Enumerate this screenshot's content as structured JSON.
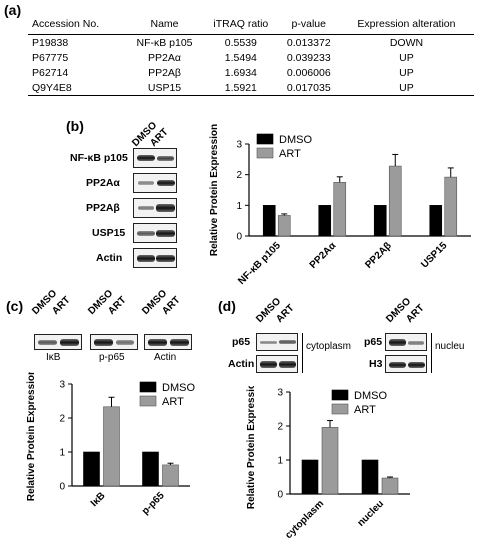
{
  "panel_labels": {
    "a": "(a)",
    "b": "(b)",
    "c": "(c)",
    "d": "(d)"
  },
  "table": {
    "headers": [
      "Accession No.",
      "Name",
      "iTRAQ ratio",
      "p-value",
      "Expression alteration"
    ],
    "rows": [
      [
        "P19838",
        "NF-κB p105",
        "0.5539",
        "0.013372",
        "DOWN"
      ],
      [
        "P67775",
        "PP2Aα",
        "1.5494",
        "0.039233",
        "UP"
      ],
      [
        "P62714",
        "PP2Aβ",
        "1.6934",
        "0.006006",
        "UP"
      ],
      [
        "Q9Y4E8",
        "USP15",
        "1.5921",
        "0.017035",
        "UP"
      ]
    ]
  },
  "blots": {
    "b": {
      "lanes": [
        "DMSO",
        "ART"
      ],
      "rows": [
        "NF-κB p105",
        "PP2Aα",
        "PP2Aβ",
        "USP15",
        "Actin"
      ]
    },
    "c": {
      "lanes": [
        "DMSO",
        "ART"
      ],
      "rows": [
        "IκB",
        "p-p65",
        "Actin"
      ]
    },
    "d": {
      "lanes": [
        "DMSO",
        "ART"
      ],
      "rows_cyto": [
        "p65",
        "Actin"
      ],
      "rows_nuc": [
        "p65",
        "H3"
      ],
      "cyto_label": "cytoplasm",
      "nuc_label": "nucleu"
    }
  },
  "colors": {
    "DMSO": "#000000",
    "ART": "#9b9b9b"
  },
  "chart_data": [
    {
      "type": "bar",
      "panel": "b",
      "categories": [
        "NF-κB p105",
        "PP2Aα",
        "PP2Aβ",
        "USP15"
      ],
      "series": [
        {
          "name": "DMSO",
          "values": [
            1,
            1,
            1,
            1
          ],
          "errors": [
            0,
            0,
            0,
            0
          ]
        },
        {
          "name": "ART",
          "values": [
            0.67,
            1.75,
            2.28,
            1.92
          ],
          "errors": [
            0.05,
            0.18,
            0.38,
            0.3
          ]
        }
      ],
      "ylabel": "Relative Protein Expression",
      "xlabel": "",
      "ylim": [
        0,
        3
      ],
      "yticks": [
        0,
        1,
        2,
        3
      ],
      "legend": "top-left"
    },
    {
      "type": "bar",
      "panel": "c",
      "categories": [
        "IκB",
        "p-p65"
      ],
      "series": [
        {
          "name": "DMSO",
          "values": [
            1,
            1
          ],
          "errors": [
            0,
            0
          ]
        },
        {
          "name": "ART",
          "values": [
            2.33,
            0.62
          ],
          "errors": [
            0.28,
            0.05
          ]
        }
      ],
      "ylabel": "Relative Protein Expression",
      "xlabel": "",
      "ylim": [
        0,
        3
      ],
      "yticks": [
        0,
        1,
        2,
        3
      ],
      "legend": "top-right"
    },
    {
      "type": "bar",
      "panel": "d",
      "categories": [
        "cytoplasm",
        "nucleu"
      ],
      "series": [
        {
          "name": "DMSO",
          "values": [
            1,
            1
          ],
          "errors": [
            0,
            0
          ]
        },
        {
          "name": "ART",
          "values": [
            1.96,
            0.47
          ],
          "errors": [
            0.2,
            0.03
          ]
        }
      ],
      "ylabel": "Relative Protein Expression",
      "xlabel": "",
      "ylim": [
        0,
        3
      ],
      "yticks": [
        0,
        1,
        2,
        3
      ],
      "legend": "top-right"
    }
  ]
}
